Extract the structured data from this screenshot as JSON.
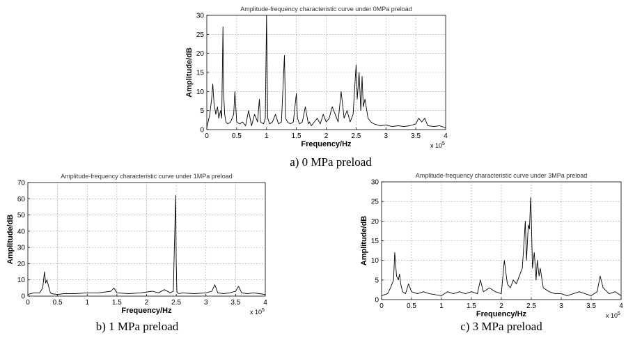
{
  "captions": [
    "a) 0 MPa preload",
    "b) 1 MPa preload",
    "c) 3 MPa preload"
  ],
  "chart_data": [
    {
      "type": "line",
      "title": "Amplitude-frequency characteristic curve under 0MPa preload",
      "xlabel": "Frequency/Hz",
      "ylabel": "Amplitude/dB",
      "x_multiplier": "x 10^5",
      "xlim": [
        0,
        4
      ],
      "ylim": [
        0,
        30
      ],
      "xticks": [
        "0",
        "0.5",
        "1",
        "1.5",
        "2",
        "2.5",
        "3",
        "3.5",
        "4"
      ],
      "yticks": [
        "0",
        "5",
        "10",
        "15",
        "20",
        "25",
        "30"
      ],
      "grid": true,
      "series": [
        {
          "x": [
            0,
            0.05,
            0.08,
            0.1,
            0.12,
            0.15,
            0.18,
            0.2,
            0.23,
            0.25,
            0.27,
            0.28,
            0.3,
            0.32,
            0.35,
            0.4,
            0.45,
            0.47,
            0.5,
            0.55,
            0.6,
            0.65,
            0.7,
            0.75,
            0.8,
            0.85,
            0.88,
            0.9,
            0.95,
            0.98,
            1.0,
            1.02,
            1.05,
            1.1,
            1.15,
            1.2,
            1.25,
            1.3,
            1.32,
            1.35,
            1.4,
            1.45,
            1.5,
            1.52,
            1.55,
            1.6,
            1.65,
            1.7,
            1.72,
            1.75,
            1.8,
            1.85,
            1.9,
            1.95,
            2.0,
            2.05,
            2.1,
            2.15,
            2.2,
            2.25,
            2.3,
            2.35,
            2.4,
            2.45,
            2.5,
            2.52,
            2.55,
            2.58,
            2.6,
            2.62,
            2.65,
            2.7,
            2.75,
            2.8,
            2.9,
            3.0,
            3.1,
            3.2,
            3.3,
            3.4,
            3.5,
            3.55,
            3.6,
            3.65,
            3.7,
            3.8,
            3.9,
            4.0
          ],
          "y": [
            0.5,
            4,
            8,
            12,
            7,
            4,
            6,
            3,
            5,
            3,
            27,
            10,
            4,
            2,
            1.5,
            2,
            4,
            10,
            2,
            1.5,
            2,
            1,
            5,
            1,
            4,
            2,
            8,
            2,
            1.5,
            3,
            30,
            3,
            1.5,
            2,
            4,
            1.5,
            2,
            19.5,
            3,
            2,
            1.5,
            2,
            9.5,
            3,
            1.5,
            2,
            6,
            1.5,
            2,
            1,
            2,
            3,
            1.5,
            4,
            2,
            3,
            6,
            4,
            2,
            10,
            3,
            5,
            2,
            4,
            17,
            8,
            15,
            5,
            14,
            6,
            8,
            3,
            2,
            1.5,
            1,
            1.2,
            0.8,
            1,
            0.8,
            1,
            1.5,
            3,
            2,
            3,
            1,
            0.8,
            1,
            0.5
          ]
        }
      ]
    },
    {
      "type": "line",
      "title": "Amplitude-frequency characteristic curve under 1MPa preload",
      "xlabel": "Frequency/Hz",
      "ylabel": "Amplitude/dB",
      "x_multiplier": "x 10^5",
      "xlim": [
        0,
        4
      ],
      "ylim": [
        0,
        70
      ],
      "xticks": [
        "0",
        "0.5",
        "1",
        "1.5",
        "2",
        "2.5",
        "3",
        "3.5",
        "4"
      ],
      "yticks": [
        "0",
        "10",
        "20",
        "30",
        "40",
        "50",
        "60",
        "70"
      ],
      "grid": true,
      "series": [
        {
          "x": [
            0,
            0.1,
            0.2,
            0.25,
            0.28,
            0.3,
            0.32,
            0.35,
            0.38,
            0.4,
            0.5,
            0.6,
            0.8,
            1.0,
            1.2,
            1.4,
            1.45,
            1.5,
            1.7,
            1.9,
            2.1,
            2.2,
            2.3,
            2.4,
            2.45,
            2.48,
            2.49,
            2.5,
            2.51,
            2.52,
            2.55,
            2.6,
            2.8,
            3.0,
            3.1,
            3.15,
            3.2,
            3.3,
            3.4,
            3.5,
            3.55,
            3.6,
            3.7,
            3.8,
            3.9,
            4.0
          ],
          "y": [
            1,
            2,
            2,
            5,
            15,
            8,
            10,
            6,
            2,
            1.5,
            1,
            1.5,
            1.5,
            2,
            2,
            3,
            5,
            2,
            1.5,
            2,
            3,
            2,
            4,
            2,
            3,
            47,
            62,
            20,
            3,
            2,
            1.5,
            2,
            1.5,
            2,
            3,
            7,
            2,
            1.5,
            2,
            3,
            6,
            2,
            1.5,
            2,
            1.5,
            1
          ]
        }
      ]
    },
    {
      "type": "line",
      "title": "Amplitude-frequency characteristic curve under 3MPa preload",
      "xlabel": "Frequency/Hz",
      "ylabel": "Amplitude/dB",
      "x_multiplier": "x 10^5",
      "xlim": [
        0,
        4
      ],
      "ylim": [
        0,
        30
      ],
      "xticks": [
        "0",
        "0.5",
        "1",
        "1.5",
        "2",
        "2.5",
        "3",
        "3.5",
        "4"
      ],
      "yticks": [
        "0",
        "5",
        "10",
        "15",
        "20",
        "25",
        "30"
      ],
      "grid": true,
      "series": [
        {
          "x": [
            0,
            0.1,
            0.15,
            0.2,
            0.22,
            0.25,
            0.28,
            0.3,
            0.32,
            0.35,
            0.4,
            0.45,
            0.5,
            0.6,
            0.7,
            0.8,
            1.0,
            1.1,
            1.2,
            1.3,
            1.4,
            1.5,
            1.6,
            1.65,
            1.7,
            1.8,
            1.9,
            2.0,
            2.05,
            2.1,
            2.15,
            2.2,
            2.25,
            2.3,
            2.35,
            2.38,
            2.4,
            2.42,
            2.45,
            2.47,
            2.49,
            2.5,
            2.52,
            2.55,
            2.58,
            2.6,
            2.63,
            2.65,
            2.7,
            2.8,
            2.9,
            3.0,
            3.1,
            3.2,
            3.3,
            3.4,
            3.5,
            3.6,
            3.65,
            3.7,
            3.8,
            3.9,
            4.0
          ],
          "y": [
            1,
            1.5,
            3,
            5,
            12,
            6,
            5,
            6.5,
            4,
            2,
            1.5,
            4,
            2,
            1.5,
            2,
            1.5,
            1,
            2,
            1.5,
            2,
            1.5,
            2,
            1.5,
            5,
            2,
            3,
            2,
            1.5,
            10,
            4,
            3,
            5,
            4,
            6,
            8,
            15,
            20,
            10,
            19,
            18,
            26,
            21,
            8,
            12,
            5,
            10,
            6,
            8,
            3,
            2,
            1.5,
            1.5,
            1,
            1.5,
            2,
            1.5,
            1,
            2,
            6,
            3,
            1.5,
            2,
            1
          ]
        }
      ]
    }
  ]
}
